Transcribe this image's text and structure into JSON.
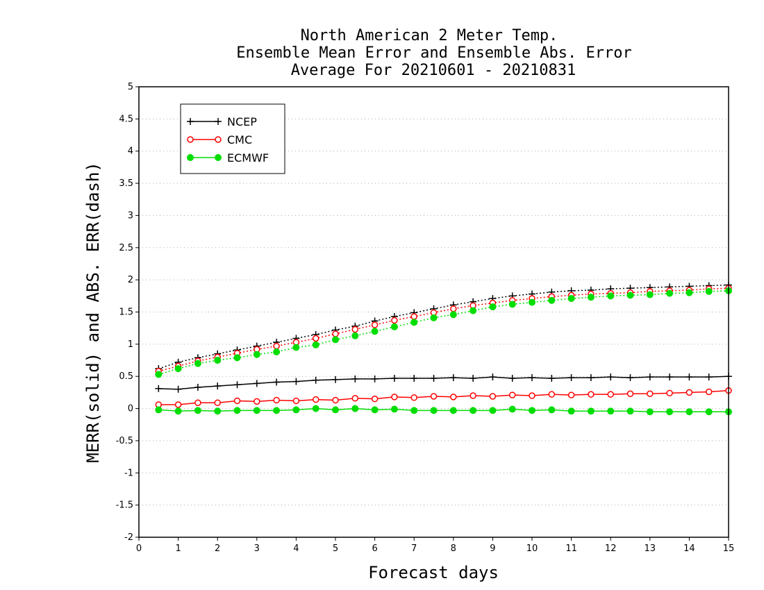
{
  "chart_data": {
    "type": "line",
    "title_lines": [
      "North American 2 Meter Temp.",
      "Ensemble Mean Error and Ensemble Abs. Error",
      "Average For 20210601 - 20210831"
    ],
    "xlabel": "Forecast days",
    "ylabel": "MERR(solid) and ABS. ERR(dash)",
    "xlim": [
      0,
      15
    ],
    "ylim": [
      -2,
      5
    ],
    "xticks": [
      0,
      1,
      2,
      3,
      4,
      5,
      6,
      7,
      8,
      9,
      10,
      11,
      12,
      13,
      14,
      15
    ],
    "yticks": [
      -2,
      -1.5,
      -1,
      -0.5,
      0,
      0.5,
      1,
      1.5,
      2,
      2.5,
      3,
      3.5,
      4,
      4.5,
      5
    ],
    "ytick_labels": [
      "-2",
      "-1.5",
      "-1",
      "-0.5",
      "0",
      "0.5",
      "1",
      "1.5",
      "2",
      "2.5",
      "3",
      "3.5",
      "4",
      "4.5",
      "5"
    ],
    "grid": "horizontal-dotted",
    "legend_position": "top-left",
    "x": [
      0.5,
      1,
      1.5,
      2,
      2.5,
      3,
      3.5,
      4,
      4.5,
      5,
      5.5,
      6,
      6.5,
      7,
      7.5,
      8,
      8.5,
      9,
      9.5,
      10,
      10.5,
      11,
      11.5,
      12,
      12.5,
      13,
      13.5,
      14,
      14.5,
      15
    ],
    "series": [
      {
        "name": "NCEP",
        "color": "#000000",
        "marker": "plus",
        "merr": [
          0.31,
          0.3,
          0.33,
          0.35,
          0.37,
          0.39,
          0.41,
          0.42,
          0.44,
          0.45,
          0.46,
          0.46,
          0.47,
          0.47,
          0.47,
          0.48,
          0.47,
          0.49,
          0.47,
          0.48,
          0.47,
          0.48,
          0.48,
          0.49,
          0.48,
          0.49,
          0.49,
          0.49,
          0.49,
          0.5
        ],
        "abs_err": [
          0.62,
          0.72,
          0.79,
          0.85,
          0.91,
          0.97,
          1.03,
          1.09,
          1.15,
          1.22,
          1.28,
          1.36,
          1.43,
          1.49,
          1.55,
          1.61,
          1.66,
          1.71,
          1.75,
          1.78,
          1.81,
          1.83,
          1.84,
          1.86,
          1.87,
          1.88,
          1.89,
          1.9,
          1.91,
          1.92
        ]
      },
      {
        "name": "CMC",
        "color": "#ff0000",
        "marker": "circle-open",
        "merr": [
          0.06,
          0.06,
          0.09,
          0.09,
          0.12,
          0.11,
          0.13,
          0.12,
          0.14,
          0.13,
          0.16,
          0.15,
          0.18,
          0.17,
          0.19,
          0.18,
          0.2,
          0.19,
          0.21,
          0.2,
          0.22,
          0.21,
          0.22,
          0.22,
          0.23,
          0.23,
          0.24,
          0.25,
          0.26,
          0.28
        ],
        "abs_err": [
          0.58,
          0.66,
          0.74,
          0.8,
          0.86,
          0.92,
          0.97,
          1.03,
          1.09,
          1.16,
          1.23,
          1.3,
          1.37,
          1.43,
          1.49,
          1.55,
          1.6,
          1.64,
          1.68,
          1.71,
          1.74,
          1.76,
          1.78,
          1.79,
          1.8,
          1.82,
          1.83,
          1.84,
          1.86,
          1.87
        ]
      },
      {
        "name": "ECMWF",
        "color": "#00dd00",
        "marker": "circle-filled",
        "merr": [
          -0.02,
          -0.04,
          -0.03,
          -0.04,
          -0.03,
          -0.03,
          -0.03,
          -0.02,
          0.0,
          -0.02,
          0.0,
          -0.02,
          -0.01,
          -0.03,
          -0.03,
          -0.03,
          -0.03,
          -0.03,
          -0.01,
          -0.03,
          -0.02,
          -0.04,
          -0.04,
          -0.04,
          -0.04,
          -0.05,
          -0.05,
          -0.05,
          -0.05,
          -0.05
        ],
        "abs_err": [
          0.53,
          0.62,
          0.7,
          0.75,
          0.79,
          0.84,
          0.88,
          0.95,
          0.99,
          1.07,
          1.13,
          1.2,
          1.27,
          1.34,
          1.41,
          1.46,
          1.52,
          1.58,
          1.62,
          1.65,
          1.68,
          1.71,
          1.73,
          1.75,
          1.76,
          1.77,
          1.79,
          1.8,
          1.82,
          1.83
        ]
      }
    ]
  }
}
